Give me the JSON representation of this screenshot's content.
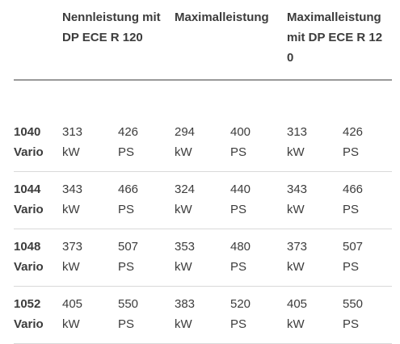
{
  "headers": [
    "Nennleistung mit DP ECE R 120",
    "Maximalleistung",
    "Maximalleistung mit DP ECE R 120"
  ],
  "units": {
    "kw": "kW",
    "ps": "PS"
  },
  "rows": [
    {
      "model_number": "1040",
      "model_suffix": "Vario",
      "values": [
        "313",
        "426",
        "294",
        "400",
        "313",
        "426"
      ]
    },
    {
      "model_number": "1044",
      "model_suffix": "Vario",
      "values": [
        "343",
        "466",
        "324",
        "440",
        "343",
        "466"
      ]
    },
    {
      "model_number": "1048",
      "model_suffix": "Vario",
      "values": [
        "373",
        "507",
        "353",
        "480",
        "373",
        "507"
      ]
    },
    {
      "model_number": "1052",
      "model_suffix": "Vario",
      "values": [
        "405",
        "550",
        "383",
        "520",
        "405",
        "550"
      ]
    }
  ]
}
